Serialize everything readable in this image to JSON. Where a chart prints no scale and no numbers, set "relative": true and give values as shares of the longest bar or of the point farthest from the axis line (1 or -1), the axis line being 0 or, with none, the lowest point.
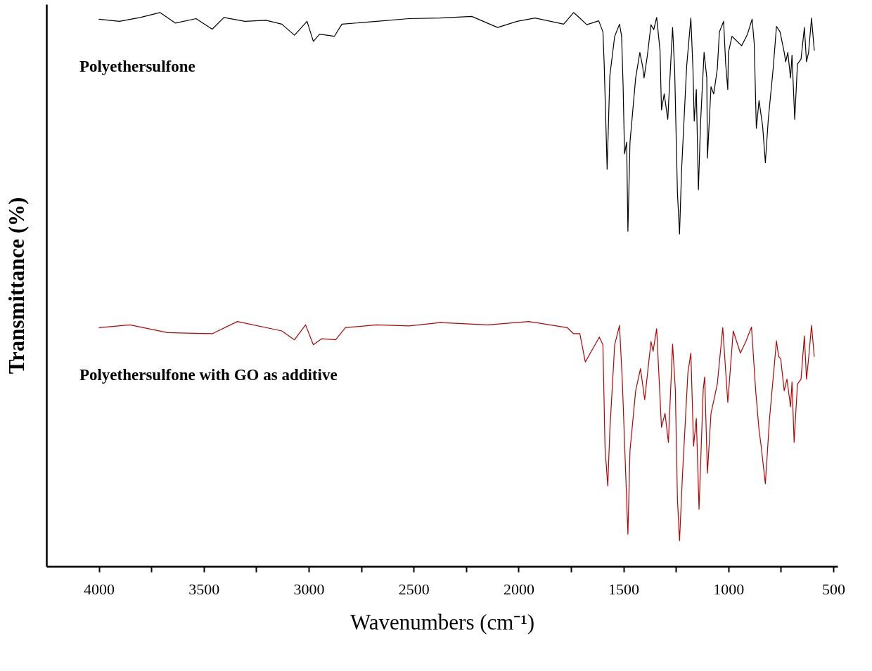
{
  "chart_data": {
    "type": "line",
    "relative": true,
    "xlabel": "Wavenumbers (cm⁻¹)",
    "ylabel": "Transmittance (%)",
    "xlim": [
      4250,
      480
    ],
    "xticks": [
      4000,
      {
        "value": 3750,
        "label": null
      },
      3500,
      {
        "value": 3250,
        "label": null
      },
      3000,
      {
        "value": 2750,
        "label": null
      },
      2500,
      {
        "value": 2250,
        "label": null
      },
      2000,
      {
        "value": 1750,
        "label": null
      },
      1500,
      {
        "value": 1250,
        "label": null
      },
      1000,
      {
        "value": 750,
        "label": null
      },
      500
    ],
    "grid": false,
    "series": [
      {
        "name": "Polyethersulfone",
        "color": "#000000",
        "x": [
          3999,
          3902,
          3803,
          3709,
          3636,
          3537,
          3460,
          3404,
          3304,
          3204,
          3128,
          3068,
          3008,
          2978,
          2948,
          2878,
          2842,
          2676,
          2523,
          2373,
          2223,
          2100,
          2007,
          1921,
          1785,
          1738,
          1708,
          1675,
          1618,
          1598,
          1592,
          1578,
          1565,
          1542,
          1519,
          1509,
          1502,
          1495,
          1485,
          1479,
          1469,
          1442,
          1422,
          1409,
          1402,
          1386,
          1369,
          1356,
          1342,
          1326,
          1319,
          1306,
          1289,
          1273,
          1266,
          1256,
          1243,
          1233,
          1223,
          1199,
          1179,
          1169,
          1163,
          1153,
          1143,
          1133,
          1116,
          1103,
          1100,
          1083,
          1070,
          1053,
          1043,
          1023,
          1013,
          1003,
          1000,
          983,
          937,
          910,
          887,
          877,
          867,
          854,
          837,
          824,
          810,
          787,
          771,
          754,
          734,
          727,
          717,
          704,
          697,
          684,
          671,
          654,
          638,
          628,
          618,
          604,
          591
        ],
        "values": [
          0.988,
          0.984,
          0.991,
          1,
          0.981,
          0.989,
          0.97,
          0.991,
          0.984,
          0.986,
          0.979,
          0.959,
          0.984,
          0.948,
          0.961,
          0.957,
          0.979,
          0.984,
          0.989,
          0.99,
          0.993,
          0.973,
          0.984,
          0.99,
          0.979,
          1,
          0.99,
          0.978,
          0.985,
          0.965,
          0.907,
          0.717,
          0.886,
          0.957,
          0.979,
          0.957,
          0.87,
          0.745,
          0.766,
          0.605,
          0.766,
          0.882,
          0.928,
          0.903,
          0.882,
          0.923,
          0.978,
          0.969,
          0.991,
          0.932,
          0.824,
          0.853,
          0.807,
          0.923,
          0.973,
          0.894,
          0.675,
          0.6,
          0.717,
          0.903,
          0.99,
          0.898,
          0.804,
          0.861,
          0.68,
          0.799,
          0.928,
          0.882,
          0.737,
          0.866,
          0.853,
          0.898,
          0.965,
          0.984,
          0.907,
          0.861,
          0.928,
          0.957,
          0.94,
          0.96,
          0.988,
          0.944,
          0.791,
          0.841,
          0.795,
          0.729,
          0.807,
          0.898,
          0.975,
          0.965,
          0.928,
          0.911,
          0.928,
          0.882,
          0.923,
          0.807,
          0.907,
          0.916,
          0.973,
          0.911,
          0.928,
          0.99,
          0.932
        ]
      },
      {
        "name": "Polyethersulfone with GO as additive",
        "color": "#c00000",
        "x": [
          3999,
          3852,
          3673,
          3460,
          3340,
          3128,
          3068,
          3015,
          2978,
          2938,
          2872,
          2825,
          2676,
          2523,
          2373,
          2147,
          1951,
          1768,
          1738,
          1708,
          1682,
          1615,
          1598,
          1588,
          1575,
          1565,
          1542,
          1519,
          1505,
          1492,
          1479,
          1469,
          1442,
          1419,
          1399,
          1369,
          1359,
          1342,
          1319,
          1302,
          1286,
          1266,
          1253,
          1243,
          1233,
          1219,
          1193,
          1179,
          1166,
          1153,
          1140,
          1120,
          1113,
          1100,
          1083,
          1053,
          1027,
          1003,
          977,
          943,
          917,
          890,
          870,
          854,
          844,
          824,
          804,
          771,
          761,
          751,
          734,
          721,
          704,
          697,
          687,
          671,
          654,
          638,
          628,
          618,
          604,
          591
        ],
        "values": [
          0.431,
          0.436,
          0.422,
          0.42,
          0.442,
          0.425,
          0.409,
          0.436,
          0.4,
          0.411,
          0.409,
          0.431,
          0.436,
          0.434,
          0.44,
          0.436,
          0.442,
          0.431,
          0.42,
          0.42,
          0.369,
          0.414,
          0.4,
          0.214,
          0.145,
          0.246,
          0.4,
          0.435,
          0.329,
          0.193,
          0.058,
          0.209,
          0.317,
          0.357,
          0.301,
          0.406,
          0.388,
          0.429,
          0.251,
          0.276,
          0.224,
          0.401,
          0.32,
          0.122,
          0.046,
          0.164,
          0.35,
          0.385,
          0.217,
          0.267,
          0.103,
          0.32,
          0.342,
          0.168,
          0.276,
          0.329,
          0.431,
          0.296,
          0.425,
          0.385,
          0.406,
          0.432,
          0.317,
          0.246,
          0.217,
          0.149,
          0.267,
          0.407,
          0.379,
          0.375,
          0.317,
          0.338,
          0.288,
          0.333,
          0.224,
          0.329,
          0.338,
          0.416,
          0.338,
          0.375,
          0.435,
          0.379
        ]
      }
    ]
  }
}
